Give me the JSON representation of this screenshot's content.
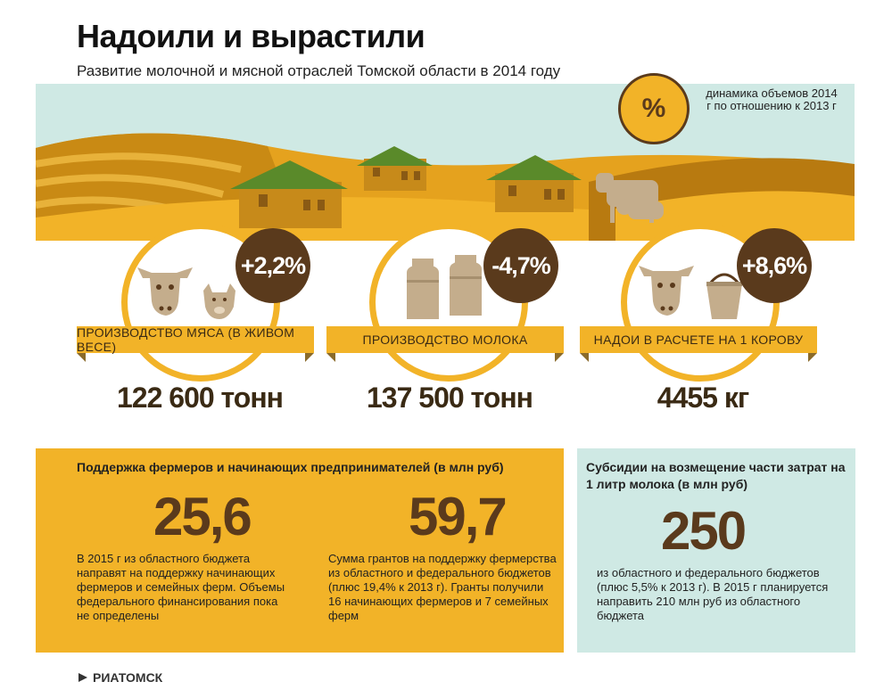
{
  "header": {
    "title": "Надоили и вырастили",
    "subtitle": "Развитие молочной и мясной отраслей Томской области в 2014 году"
  },
  "legend": {
    "symbol": "%",
    "text": "динамика объемов 2014 г по отношению к 2013 г"
  },
  "stats": [
    {
      "label": "ПРОИЗВОДСТВО МЯСА (В ЖИВОМ ВЕСЕ)",
      "change": "+2,2%",
      "value": "122 600 тонн",
      "icons": [
        "cow-icon",
        "pig-icon"
      ]
    },
    {
      "label": "ПРОИЗВОДСТВО МОЛОКА",
      "change": "-4,7%",
      "value": "137 500 тонн",
      "icons": [
        "milk-can-icon",
        "milk-can-icon"
      ]
    },
    {
      "label": "НАДОИ В РАСЧЕТЕ НА 1 КОРОВУ",
      "change": "+8,6%",
      "value": "4455 кг",
      "icons": [
        "cow-icon",
        "bucket-icon"
      ]
    }
  ],
  "support": {
    "heading": "Поддержка фермеров и начинающих предпринимателей (в млн руб)",
    "items": [
      {
        "number": "25,6",
        "text": "В 2015 г из областного бюджета направят на поддержку начинающих фермеров и семейных ферм. Объемы федерального финансирования пока не определены"
      },
      {
        "number": "59,7",
        "text": "Сумма грантов на поддержку фермерства из областного и федерального бюджетов (плюс 19,4% к 2013 г). Гранты получили 16 начинающих фермеров и 7 семейных ферм"
      }
    ]
  },
  "subsidy": {
    "heading": "Субсидии на возмещение части затрат на 1 литр молока (в млн руб)",
    "number": "250",
    "text": "из областного и федерального бюджетов (плюс 5,5% к 2013 г). В 2015 г планируется направить 210 млн руб из областного бюджета"
  },
  "footer": {
    "logo": "РИАТОМСК"
  },
  "colors": {
    "accent": "#f2b328",
    "brown": "#5a3a1c",
    "mint": "#cfe9e4",
    "roof": "#5a8a2a"
  }
}
